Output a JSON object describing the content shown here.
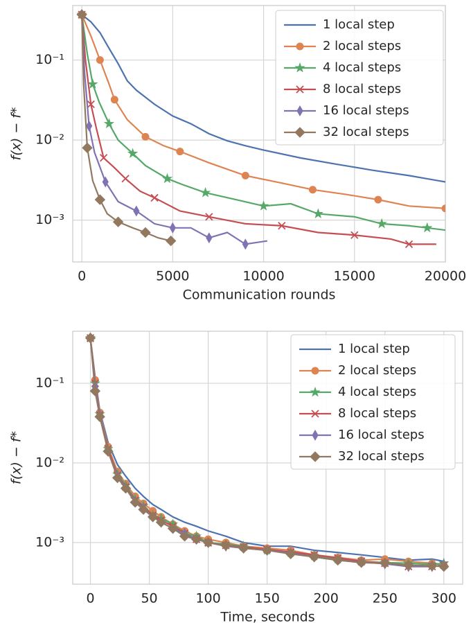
{
  "chart_data": [
    {
      "type": "line",
      "xlabel": "Communication rounds",
      "ylabel": "f(x) − f*",
      "log_y": true,
      "grid": true,
      "legend": "upper right",
      "xlim": [
        -500,
        20000
      ],
      "xticks": [
        0,
        5000,
        10000,
        15000,
        20000
      ],
      "ylim": [
        0.0003,
        0.48
      ],
      "yticks": [
        {
          "value": 0.001,
          "label": "10⁻³"
        },
        {
          "value": 0.01,
          "label": "10⁻²"
        },
        {
          "value": 0.1,
          "label": "10⁻¹"
        }
      ],
      "series": [
        {
          "name": "1 local step",
          "color": "#4c72b0",
          "marker": "none",
          "x": [
            0,
            500,
            1000,
            1500,
            2000,
            2500,
            3000,
            4000,
            5000,
            6000,
            7000,
            8000,
            9000,
            10000,
            12000,
            14000,
            16000,
            18000,
            20000
          ],
          "values": [
            0.37,
            0.3,
            0.22,
            0.14,
            0.09,
            0.055,
            0.042,
            0.028,
            0.02,
            0.016,
            0.012,
            0.0098,
            0.0085,
            0.0075,
            0.006,
            0.005,
            0.0042,
            0.0036,
            0.003
          ]
        },
        {
          "name": "2 local steps",
          "color": "#dd8452",
          "marker": "circle",
          "x": [
            0,
            500,
            1000,
            1500,
            1800,
            2500,
            3500,
            4500,
            5400,
            7000,
            9000,
            11000,
            12700,
            14500,
            16300,
            18000,
            20000
          ],
          "values": [
            0.37,
            0.2,
            0.1,
            0.05,
            0.032,
            0.018,
            0.011,
            0.0085,
            0.0072,
            0.0052,
            0.0036,
            0.0029,
            0.0024,
            0.0021,
            0.0018,
            0.0015,
            0.0014
          ]
        },
        {
          "name": "4 local steps",
          "color": "#55a868",
          "marker": "star",
          "x": [
            0,
            300,
            600,
            950,
            1500,
            2000,
            2800,
            3500,
            4700,
            5500,
            6800,
            8500,
            10000,
            11500,
            13000,
            15000,
            16500,
            18000,
            19000,
            20000
          ],
          "values": [
            0.37,
            0.12,
            0.05,
            0.03,
            0.016,
            0.01,
            0.0068,
            0.0048,
            0.0033,
            0.0028,
            0.0022,
            0.0018,
            0.0015,
            0.0016,
            0.0012,
            0.0011,
            0.0009,
            0.00085,
            0.0008,
            0.00075
          ]
        },
        {
          "name": "8 local steps",
          "color": "#c44e52",
          "marker": "x",
          "x": [
            0,
            200,
            500,
            800,
            1200,
            1800,
            2400,
            3200,
            4000,
            5400,
            7000,
            9000,
            11000,
            13000,
            15000,
            17000,
            18000,
            19500
          ],
          "values": [
            0.37,
            0.1,
            0.028,
            0.014,
            0.006,
            0.0045,
            0.0033,
            0.0023,
            0.0019,
            0.0013,
            0.0011,
            0.0009,
            0.00085,
            0.0007,
            0.00065,
            0.00058,
            0.0005,
            0.0005
          ]
        },
        {
          "name": "16 local steps",
          "color": "#8172b3",
          "marker": "thin_diamond",
          "x": [
            0,
            150,
            400,
            700,
            1300,
            2000,
            3000,
            4000,
            5000,
            6000,
            7000,
            8000,
            9000,
            10200
          ],
          "values": [
            0.37,
            0.07,
            0.015,
            0.007,
            0.003,
            0.0017,
            0.0013,
            0.0009,
            0.0008,
            0.0008,
            0.0006,
            0.0007,
            0.0005,
            0.00055
          ]
        },
        {
          "name": "32 local steps",
          "color": "#937860",
          "marker": "diamond",
          "x": [
            0,
            100,
            300,
            600,
            1000,
            1400,
            2000,
            2800,
            3500,
            4200,
            4900
          ],
          "values": [
            0.37,
            0.05,
            0.008,
            0.0031,
            0.0018,
            0.0012,
            0.00095,
            0.0008,
            0.0007,
            0.0006,
            0.00055
          ]
        }
      ]
    },
    {
      "type": "line",
      "xlabel": "Time, seconds",
      "ylabel": "f(x) − f*",
      "log_y": true,
      "grid": true,
      "legend": "upper right",
      "xlim": [
        -15,
        316
      ],
      "xticks": [
        0,
        50,
        100,
        150,
        200,
        250,
        300
      ],
      "ylim": [
        0.0003,
        0.45
      ],
      "yticks": [
        {
          "value": 0.001,
          "label": "10⁻³"
        },
        {
          "value": 0.01,
          "label": "10⁻²"
        },
        {
          "value": 0.1,
          "label": "10⁻¹"
        }
      ],
      "x": [
        0,
        4,
        8,
        15,
        23,
        30,
        38,
        45,
        53,
        60,
        70,
        80,
        90,
        100,
        115,
        130,
        150,
        170,
        190,
        210,
        230,
        250,
        270,
        290,
        300
      ],
      "series": [
        {
          "name": "1 local step",
          "color": "#4c72b0",
          "marker": "none",
          "values": [
            0.37,
            0.12,
            0.045,
            0.018,
            0.0095,
            0.0068,
            0.0048,
            0.0038,
            0.003,
            0.0026,
            0.0021,
            0.0018,
            0.0016,
            0.0014,
            0.0012,
            0.001,
            0.0009,
            0.0009,
            0.0008,
            0.00075,
            0.0007,
            0.00065,
            0.0006,
            0.00062,
            0.00058
          ]
        },
        {
          "name": "2 local steps",
          "color": "#dd8452",
          "marker": "circle",
          "values": [
            0.37,
            0.11,
            0.043,
            0.016,
            0.0078,
            0.0055,
            0.0038,
            0.0031,
            0.0025,
            0.0021,
            0.0017,
            0.0014,
            0.0012,
            0.0011,
            0.001,
            0.0009,
            0.00085,
            0.0008,
            0.0007,
            0.00065,
            0.0006,
            0.00062,
            0.00058,
            0.00055,
            0.00052
          ]
        },
        {
          "name": "4 local steps",
          "color": "#55a868",
          "marker": "star",
          "values": [
            0.37,
            0.1,
            0.041,
            0.015,
            0.0072,
            0.0052,
            0.0035,
            0.0029,
            0.0022,
            0.002,
            0.0017,
            0.0013,
            0.0012,
            0.001,
            0.00095,
            0.0009,
            0.0008,
            0.00075,
            0.00068,
            0.00062,
            0.00058,
            0.00056,
            0.00055,
            0.00053,
            0.00055
          ]
        },
        {
          "name": "8 local steps",
          "color": "#c44e52",
          "marker": "x",
          "values": [
            0.37,
            0.1,
            0.04,
            0.015,
            0.007,
            0.005,
            0.0034,
            0.0028,
            0.0022,
            0.0019,
            0.0016,
            0.0013,
            0.0011,
            0.001,
            0.00092,
            0.00088,
            0.00082,
            0.00076,
            0.0007,
            0.00064,
            0.00058,
            0.00055,
            0.0005,
            0.0005,
            0.00052
          ]
        },
        {
          "name": "16 local steps",
          "color": "#8172b3",
          "marker": "thin_diamond",
          "values": [
            0.37,
            0.09,
            0.04,
            0.014,
            0.0068,
            0.0049,
            0.0033,
            0.0027,
            0.0021,
            0.0018,
            0.0015,
            0.0013,
            0.0011,
            0.001,
            0.0009,
            0.00085,
            0.0008,
            0.00074,
            0.00066,
            0.0006,
            0.00057,
            0.00054,
            0.0005,
            0.0005,
            0.00052
          ]
        },
        {
          "name": "32 local steps",
          "color": "#937860",
          "marker": "diamond",
          "values": [
            0.37,
            0.08,
            0.038,
            0.014,
            0.0065,
            0.0048,
            0.0032,
            0.0026,
            0.0021,
            0.0018,
            0.0015,
            0.0012,
            0.0011,
            0.001,
            0.00092,
            0.00085,
            0.0008,
            0.00072,
            0.00066,
            0.0006,
            0.00056,
            0.00055,
            0.00052,
            0.00051,
            0.0005
          ]
        }
      ]
    }
  ]
}
